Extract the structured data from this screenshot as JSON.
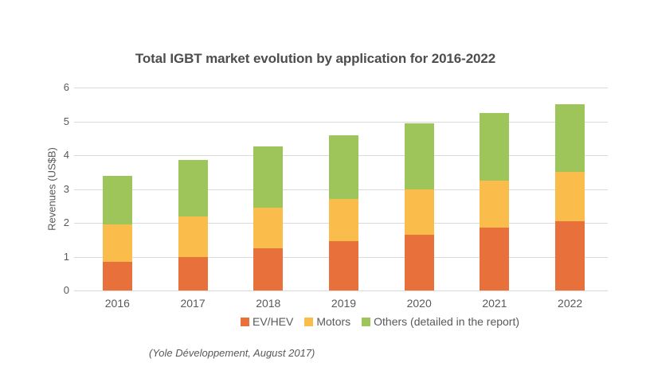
{
  "chart_data": {
    "type": "bar",
    "stacked": true,
    "title": "Total IGBT market evolution by application for 2016-2022",
    "ylabel": "Revenues (US$B)",
    "xlabel": "",
    "ylim": [
      0,
      6
    ],
    "yticks": [
      0,
      1,
      2,
      3,
      4,
      5,
      6
    ],
    "grid": true,
    "legend_position": "bottom",
    "categories": [
      "2016",
      "2017",
      "2018",
      "2019",
      "2020",
      "2021",
      "2022"
    ],
    "series": [
      {
        "name": "EV/HEV",
        "color": "#E8713B",
        "values": [
          0.85,
          1.0,
          1.25,
          1.45,
          1.65,
          1.85,
          2.05
        ]
      },
      {
        "name": "Motors",
        "color": "#FABD4B",
        "values": [
          1.1,
          1.2,
          1.2,
          1.25,
          1.35,
          1.4,
          1.45
        ]
      },
      {
        "name": "Others (detailed in the report)",
        "color": "#9DC559",
        "values": [
          1.45,
          1.65,
          1.8,
          1.9,
          1.95,
          2.0,
          2.0
        ]
      }
    ],
    "totals": [
      3.4,
      3.85,
      4.25,
      4.6,
      4.95,
      5.25,
      5.5
    ],
    "source_note": "(Yole Développement, August 2017)"
  },
  "colors": {
    "background": "#FFFFFF",
    "title_text": "#4D4D4D",
    "axis_text": "#595959",
    "gridline": "#D9D9D9",
    "ev_hev": "#E8713B",
    "motors": "#FABD4B",
    "others": "#9DC559"
  }
}
